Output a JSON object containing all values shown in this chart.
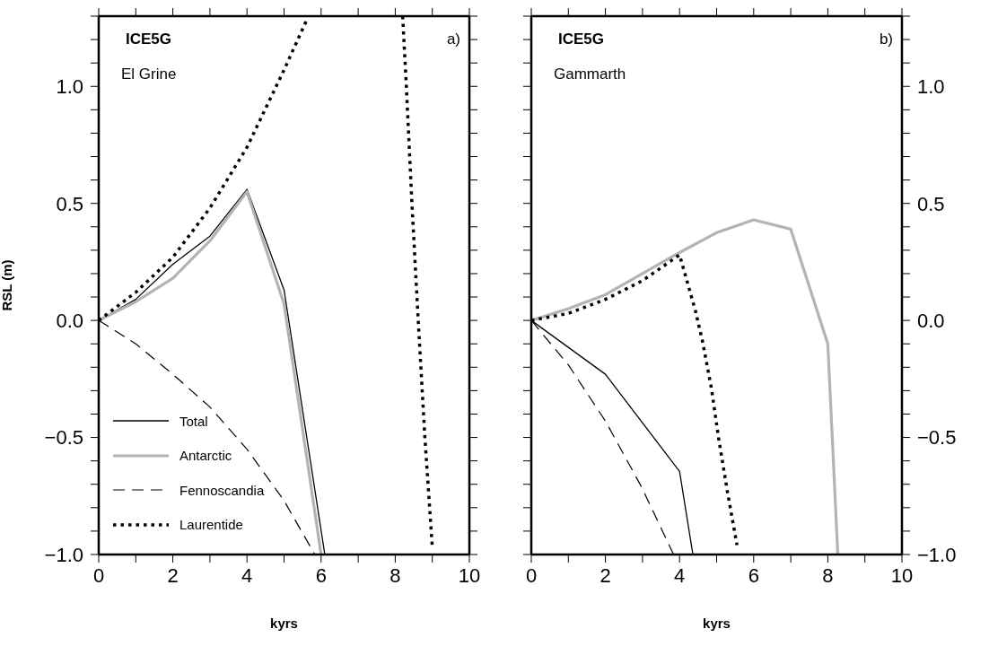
{
  "chart_data": [
    {
      "type": "line",
      "xlabel": "kyrs",
      "ylabel": "RSL (m)",
      "annotations": [
        "ICE5G",
        "El Grine",
        "a)"
      ],
      "legend": "bottom left",
      "xlim": [
        0,
        10
      ],
      "ylim": [
        -1.0,
        1.3
      ],
      "xticks": [
        0,
        {
          "value": 1,
          "label": null
        },
        2,
        {
          "value": 3,
          "label": null
        },
        4,
        {
          "value": 5,
          "label": null
        },
        6,
        {
          "value": 7,
          "label": null
        },
        8,
        {
          "value": 9,
          "label": null
        },
        10
      ],
      "yticks": [
        {
          "value": -1.0,
          "label": "−1.0"
        },
        {
          "value": -0.9,
          "label": null
        },
        {
          "value": -0.8,
          "label": null
        },
        {
          "value": -0.7,
          "label": null
        },
        {
          "value": -0.6,
          "label": null
        },
        {
          "value": -0.5,
          "label": "−0.5"
        },
        {
          "value": -0.4,
          "label": null
        },
        {
          "value": -0.3,
          "label": null
        },
        {
          "value": -0.2,
          "label": null
        },
        {
          "value": -0.1,
          "label": null
        },
        {
          "value": 0.0,
          "label": "0.0"
        },
        {
          "value": 0.1,
          "label": null
        },
        {
          "value": 0.2,
          "label": null
        },
        {
          "value": 0.3,
          "label": null
        },
        {
          "value": 0.4,
          "label": null
        },
        {
          "value": 0.5,
          "label": "0.5"
        },
        {
          "value": 0.6,
          "label": null
        },
        {
          "value": 0.7,
          "label": null
        },
        {
          "value": 0.8,
          "label": null
        },
        {
          "value": 0.9,
          "label": null
        },
        {
          "value": 1.0,
          "label": "1.0"
        },
        {
          "value": 1.1,
          "label": null
        },
        {
          "value": 1.2,
          "label": null
        },
        {
          "value": 1.3,
          "label": null
        }
      ],
      "series": [
        {
          "name": "Total",
          "color": "#000000",
          "line_style": "solid",
          "x": [
            0,
            1,
            2,
            3,
            4,
            5,
            6.1
          ],
          "values": [
            0,
            0.09,
            0.24,
            0.36,
            0.56,
            0.13,
            -1.0
          ]
        },
        {
          "name": "Antarctic",
          "color": "#b3b3b3",
          "line_style": "solid",
          "x": [
            0,
            1,
            2,
            3,
            4,
            5,
            6.0
          ],
          "values": [
            0,
            0.08,
            0.18,
            0.34,
            0.55,
            0.07,
            -1.0
          ]
        },
        {
          "name": "Fennoscandia",
          "color": "#000000",
          "line_style": "dashed",
          "x": [
            0,
            1,
            2,
            3,
            4,
            5,
            5.83
          ],
          "values": [
            0,
            -0.1,
            -0.23,
            -0.37,
            -0.55,
            -0.77,
            -1.0
          ]
        },
        {
          "name": "Laurentide",
          "color": "#000000",
          "line_style": "dotted",
          "x": [
            0,
            1,
            2,
            3,
            4,
            5,
            5.6,
            7,
            8.2,
            8.3,
            8.45,
            8.62,
            8.8,
            9.0
          ],
          "values": [
            0,
            0.12,
            0.27,
            0.48,
            0.74,
            1.07,
            1.28,
            null,
            1.3,
            1.0,
            0.5,
            0.0,
            -0.5,
            -0.97
          ]
        }
      ]
    },
    {
      "type": "line",
      "xlabel": "kyrs",
      "annotations": [
        "ICE5G",
        "Gammarth",
        "b)"
      ],
      "xlim": [
        0,
        10
      ],
      "ylim": [
        -1.0,
        1.3
      ],
      "xticks": [
        0,
        {
          "value": 1,
          "label": null
        },
        2,
        {
          "value": 3,
          "label": null
        },
        4,
        {
          "value": 5,
          "label": null
        },
        6,
        {
          "value": 7,
          "label": null
        },
        8,
        {
          "value": 9,
          "label": null
        },
        10
      ],
      "yticks": [
        {
          "value": -1.0,
          "label": "−1.0"
        },
        {
          "value": -0.9,
          "label": null
        },
        {
          "value": -0.8,
          "label": null
        },
        {
          "value": -0.7,
          "label": null
        },
        {
          "value": -0.6,
          "label": null
        },
        {
          "value": -0.5,
          "label": "−0.5"
        },
        {
          "value": -0.4,
          "label": null
        },
        {
          "value": -0.3,
          "label": null
        },
        {
          "value": -0.2,
          "label": null
        },
        {
          "value": -0.1,
          "label": null
        },
        {
          "value": 0.0,
          "label": "0.0"
        },
        {
          "value": 0.1,
          "label": null
        },
        {
          "value": 0.2,
          "label": null
        },
        {
          "value": 0.3,
          "label": null
        },
        {
          "value": 0.4,
          "label": null
        },
        {
          "value": 0.5,
          "label": "0.5"
        },
        {
          "value": 0.6,
          "label": null
        },
        {
          "value": 0.7,
          "label": null
        },
        {
          "value": 0.8,
          "label": null
        },
        {
          "value": 0.9,
          "label": null
        },
        {
          "value": 1.0,
          "label": "1.0"
        },
        {
          "value": 1.1,
          "label": null
        },
        {
          "value": 1.2,
          "label": null
        },
        {
          "value": 1.3,
          "label": null
        }
      ],
      "series": [
        {
          "color": "#000000",
          "line_style": "solid",
          "x": [
            0,
            2,
            4,
            4.36
          ],
          "values": [
            0,
            -0.23,
            -0.645,
            -1.0
          ]
        },
        {
          "color": "#b3b3b3",
          "line_style": "solid",
          "x": [
            0,
            1,
            2,
            3,
            4,
            5,
            6,
            7,
            8,
            8.27
          ],
          "values": [
            0,
            0.05,
            0.11,
            0.2,
            0.29,
            0.375,
            0.43,
            0.39,
            -0.1,
            -1.0
          ]
        },
        {
          "color": "#000000",
          "line_style": "dashed",
          "x": [
            0,
            1,
            2,
            2.97,
            3.84
          ],
          "values": [
            0,
            -0.19,
            -0.43,
            -0.71,
            -1.0
          ]
        },
        {
          "color": "#000000",
          "line_style": "dotted",
          "x": [
            0,
            1,
            2,
            3,
            4,
            4.18,
            4.43,
            4.62,
            4.86,
            5.06,
            5.3,
            5.55
          ],
          "values": [
            0,
            0.03,
            0.09,
            0.17,
            0.28,
            0.18,
            0.04,
            -0.09,
            -0.29,
            -0.51,
            -0.74,
            -0.96
          ]
        }
      ]
    }
  ]
}
